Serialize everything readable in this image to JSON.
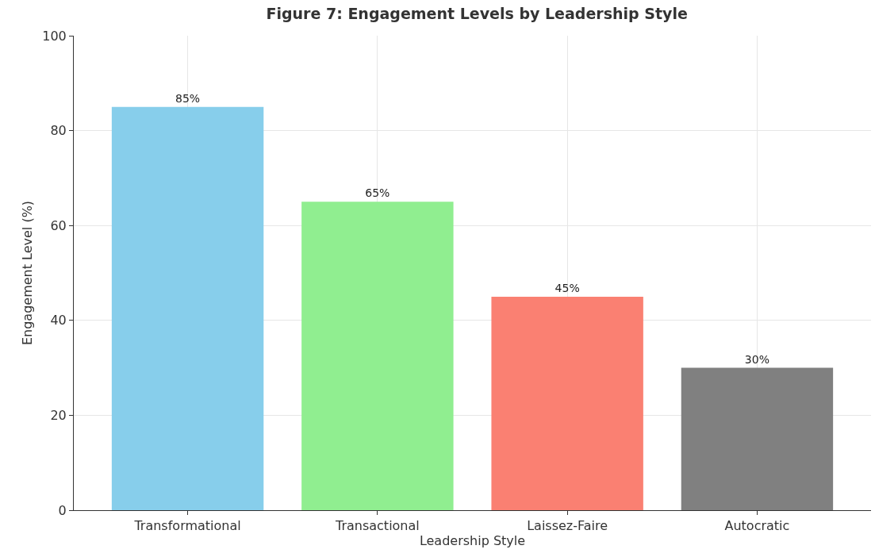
{
  "chart_data": {
    "type": "bar",
    "title": "Figure 7: Engagement Levels by Leadership Style",
    "xlabel": "Leadership Style",
    "ylabel": "Engagement Level (%)",
    "categories": [
      "Transformational",
      "Transactional",
      "Laissez-Faire",
      "Autocratic"
    ],
    "values": [
      85,
      65,
      45,
      30
    ],
    "colors": [
      "#87ceeb",
      "#90ee90",
      "#fa8072",
      "#808080"
    ],
    "value_labels": [
      "85%",
      "65%",
      "45%",
      "30%"
    ],
    "ylim": [
      0,
      100
    ],
    "yticks": [
      0,
      20,
      40,
      60,
      80,
      100
    ],
    "grid": true
  }
}
